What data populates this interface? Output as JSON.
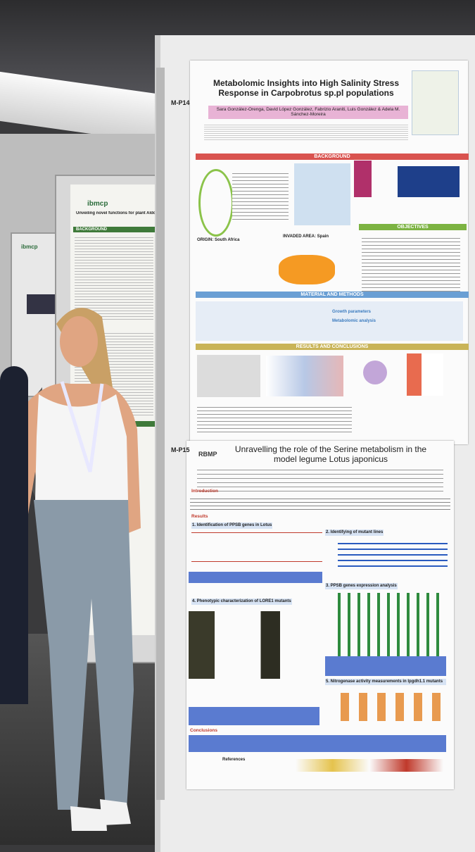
{
  "main_poster": {
    "code": "M-P14",
    "title": "Metabolomic Insights into High Salinity Stress Response in Carpobrotus sp.pl populations",
    "authors": "Sara González-Orenga, David López González, Fabrizio Araniti, Luis González & Adela M. Sánchez-Moreira",
    "sections": [
      "BACKGROUND",
      "OBJECTIVES",
      "MATERIAL AND METHODS",
      "RESULTS AND CONCLUSIONS"
    ],
    "labels": [
      "ORIGIN: South Africa",
      "INVADED AREA: Spain",
      "Growth parameters",
      "Metabolomic analysis"
    ]
  },
  "second_poster": {
    "code": "M-P15",
    "logo": "RBMP",
    "title": "Unravelling the role of the Serine metabolism in the model legume Lotus japonicus",
    "sections": [
      "Introduction",
      "Results",
      "1. Identification of PPSB genes in Lotus",
      "2. Identifying of mutant lines",
      "3. PPSB genes expression analysis",
      "4. Phenotypic characterization of LORE1 mutants",
      "5. Nitrogenase activity measurements in lpgdh1.1 mutants",
      "Conclusions",
      "References"
    ]
  },
  "left_poster": {
    "logo": "ibmcp",
    "title": "Unveiling novel functions for plant Aldo-ket",
    "section": "BACKGROUND"
  },
  "far_poster": {
    "logo": "ibmcp"
  }
}
